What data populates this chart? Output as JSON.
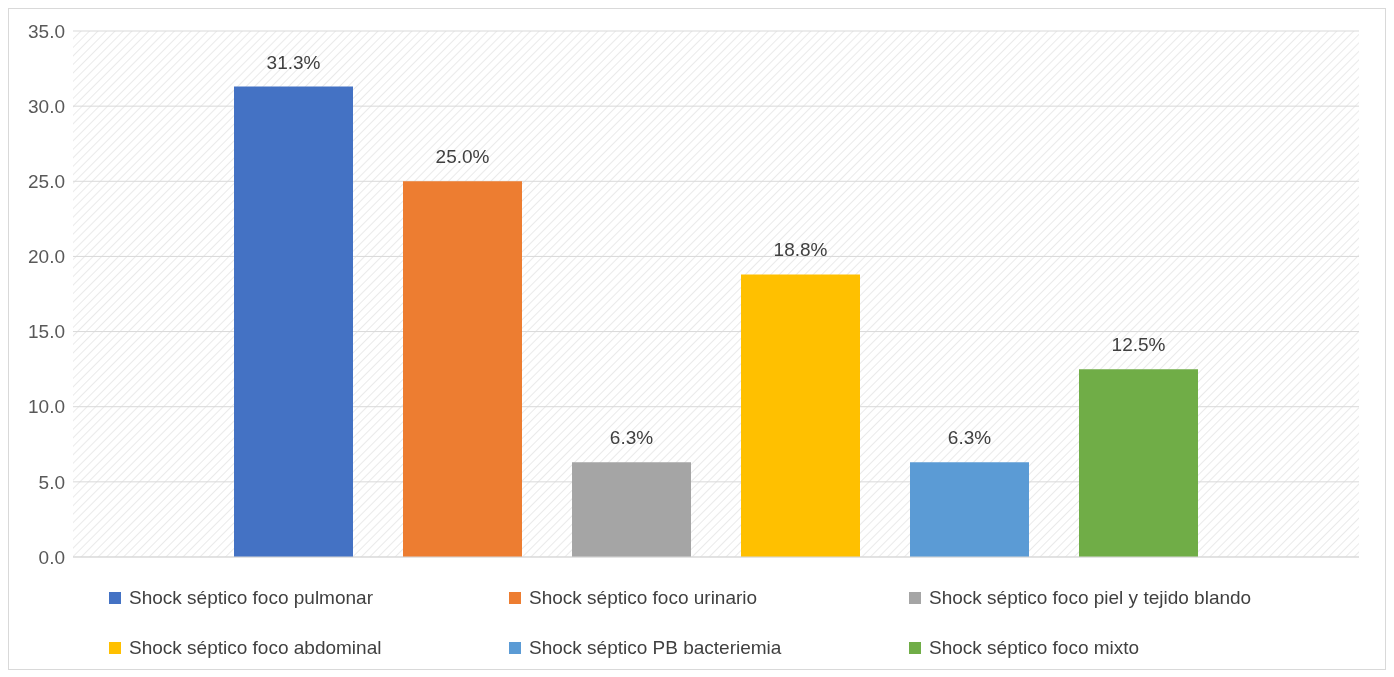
{
  "chart_data": {
    "type": "bar",
    "categories": [
      null
    ],
    "series": [
      {
        "name": "Shock séptico foco pulmonar",
        "color": "#4472c4",
        "values": [
          31.3
        ],
        "value_labels": [
          "31.3%"
        ]
      },
      {
        "name": "Shock séptico foco urinario",
        "color": "#ed7d31",
        "values": [
          25.0
        ],
        "value_labels": [
          "25.0%"
        ]
      },
      {
        "name": "Shock séptico foco piel y tejido blando",
        "color": "#a5a5a5",
        "values": [
          6.3
        ],
        "value_labels": [
          "6.3%"
        ]
      },
      {
        "name": "Shock séptico foco abdominal",
        "color": "#ffc000",
        "values": [
          18.8
        ],
        "value_labels": [
          "18.8%"
        ]
      },
      {
        "name": "Shock séptico PB bacteriemia",
        "color": "#5b9bd5",
        "values": [
          6.3
        ],
        "value_labels": [
          "6.3%"
        ]
      },
      {
        "name": "Shock séptico foco mixto",
        "color": "#70ad47",
        "values": [
          12.5
        ],
        "value_labels": [
          "12.5%"
        ]
      }
    ],
    "ylim": [
      0,
      35
    ],
    "yticks": [
      {
        "value": 0,
        "label": "0.0"
      },
      {
        "value": 5,
        "label": "5.0"
      },
      {
        "value": 10,
        "label": "10.0"
      },
      {
        "value": 15,
        "label": "15.0"
      },
      {
        "value": 20,
        "label": "20.0"
      },
      {
        "value": 25,
        "label": "25.0"
      },
      {
        "value": 30,
        "label": "30.0"
      },
      {
        "value": 35,
        "label": "35.0"
      }
    ],
    "grid": "y",
    "legend": "bottom",
    "tick_labels": "y"
  }
}
